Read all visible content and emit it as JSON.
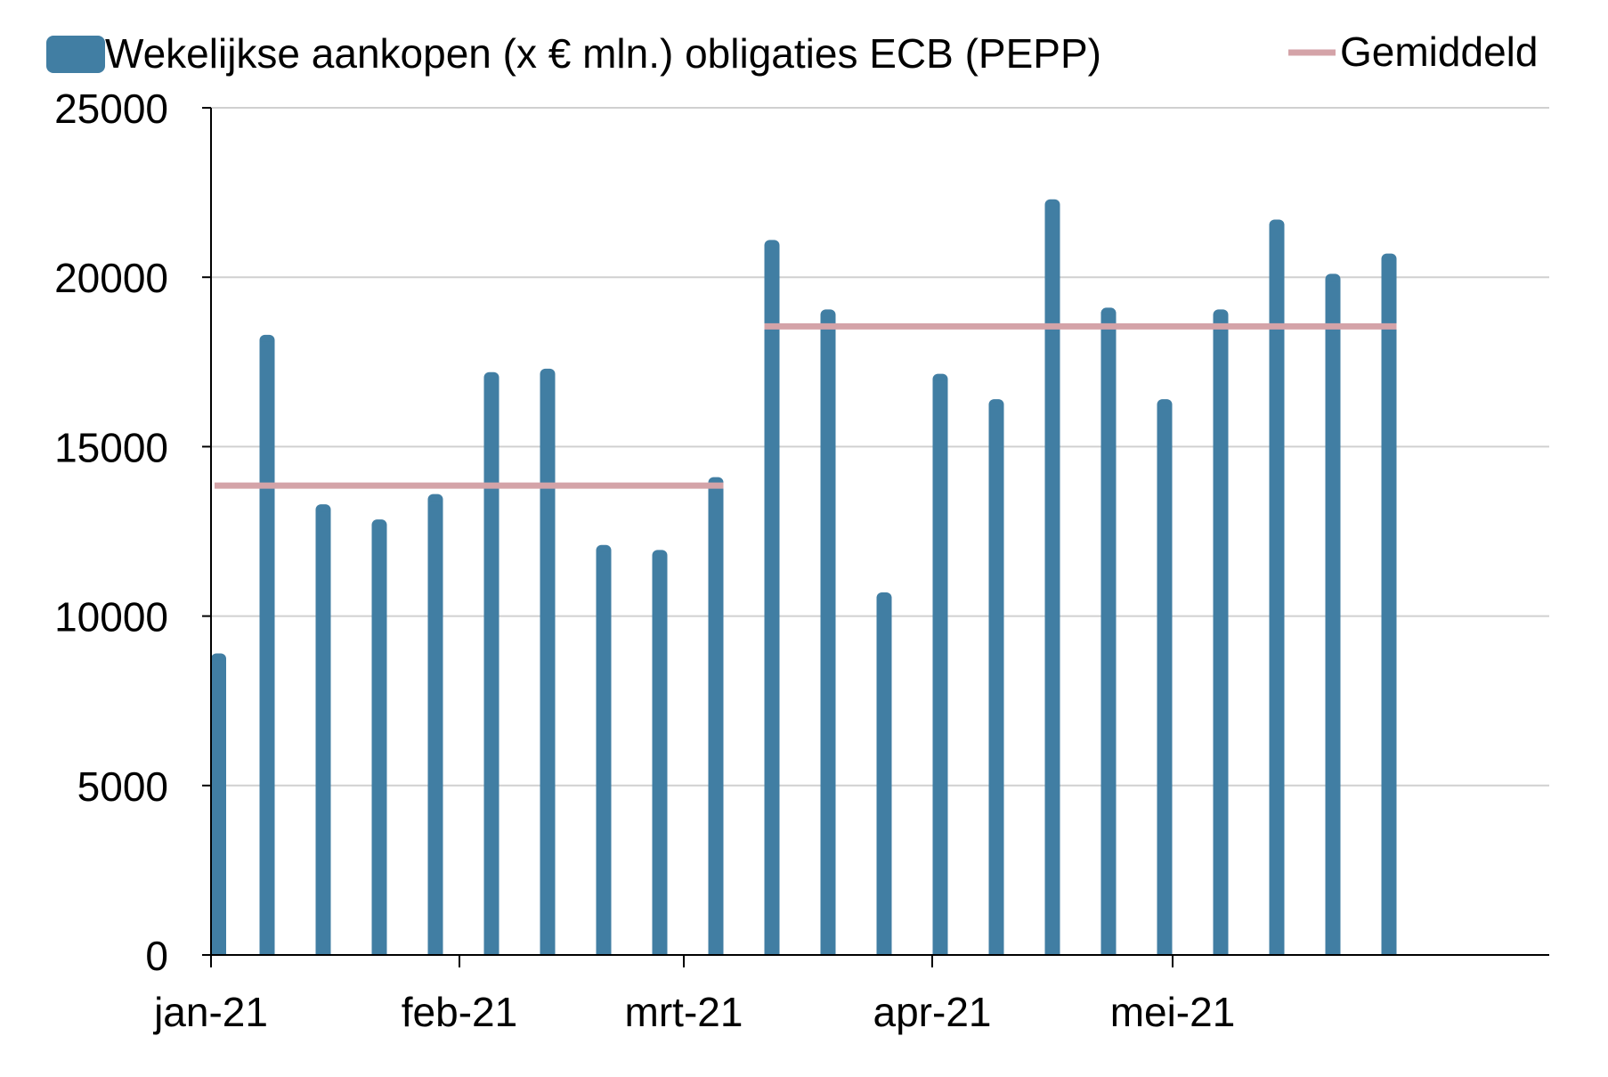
{
  "chart_data": {
    "type": "bar",
    "x_axis": {
      "ticks": [
        {
          "label": "jan-21",
          "date": "2021-01-01"
        },
        {
          "label": "feb-21",
          "date": "2021-02-01"
        },
        {
          "label": "mrt-21",
          "date": "2021-03-01"
        },
        {
          "label": "apr-21",
          "date": "2021-04-01"
        },
        {
          "label": "mei-21",
          "date": "2021-05-01"
        }
      ],
      "range": [
        "2021-01-01",
        "2021-06-17"
      ]
    },
    "y_axis": {
      "range": [
        0,
        25000
      ],
      "ticks": [
        0,
        5000,
        10000,
        15000,
        20000,
        25000
      ],
      "grid": true
    },
    "legend_position": "top",
    "series": [
      {
        "name": "Wekelijkse aankopen (x € mln.) obligaties ECB (PEPP)",
        "kind": "bar",
        "color": "#417ea3",
        "points": [
          {
            "date": "2021-01-01",
            "value": 8900
          },
          {
            "date": "2021-01-08",
            "value": 18300
          },
          {
            "date": "2021-01-15",
            "value": 13300
          },
          {
            "date": "2021-01-22",
            "value": 12850
          },
          {
            "date": "2021-01-29",
            "value": 13600
          },
          {
            "date": "2021-02-05",
            "value": 17200
          },
          {
            "date": "2021-02-12",
            "value": 17300
          },
          {
            "date": "2021-02-19",
            "value": 12100
          },
          {
            "date": "2021-02-26",
            "value": 11950
          },
          {
            "date": "2021-03-05",
            "value": 14100
          },
          {
            "date": "2021-03-12",
            "value": 21100
          },
          {
            "date": "2021-03-19",
            "value": 19050
          },
          {
            "date": "2021-03-26",
            "value": 10700
          },
          {
            "date": "2021-04-02",
            "value": 17150
          },
          {
            "date": "2021-04-09",
            "value": 16400
          },
          {
            "date": "2021-04-16",
            "value": 22300
          },
          {
            "date": "2021-04-23",
            "value": 19100
          },
          {
            "date": "2021-04-30",
            "value": 16400
          },
          {
            "date": "2021-05-07",
            "value": 19050
          },
          {
            "date": "2021-05-14",
            "value": 21700
          },
          {
            "date": "2021-05-21",
            "value": 20100
          },
          {
            "date": "2021-05-28",
            "value": 20700
          }
        ]
      },
      {
        "name": "Gemiddeld",
        "kind": "line",
        "color": "#d4a3a8",
        "segments": [
          {
            "from": "2021-01-01",
            "to": "2021-03-05",
            "value": 13850
          },
          {
            "from": "2021-03-12",
            "to": "2021-05-28",
            "value": 18550
          }
        ]
      }
    ]
  }
}
